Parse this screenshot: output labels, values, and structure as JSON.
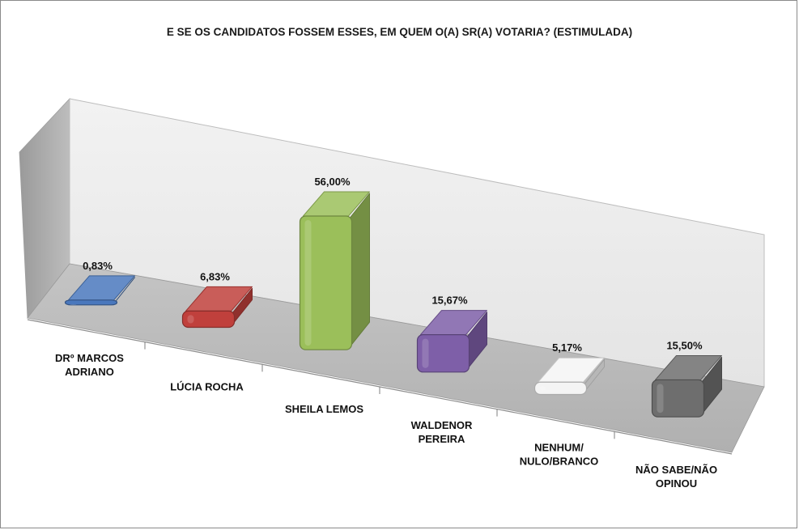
{
  "chart_data": {
    "type": "bar",
    "title": "E SE OS CANDIDATOS FOSSEM ESSES, EM QUEM O(A) SR(A) VOTARIA? (ESTIMULADA)",
    "categories": [
      [
        "DRº MARCOS",
        "ADRIANO"
      ],
      [
        "LÚCIA ROCHA"
      ],
      [
        "SHEILA LEMOS"
      ],
      [
        "WALDENOR",
        "PEREIRA"
      ],
      [
        "NENHUM/",
        "NULO/BRANCO"
      ],
      [
        "NÃO SABE/NÃO",
        "OPINOU"
      ]
    ],
    "values": [
      0.83,
      6.83,
      56.0,
      15.67,
      5.17,
      15.5
    ],
    "value_labels": [
      "0,83%",
      "6,83%",
      "56,00%",
      "15,67%",
      "5,17%",
      "15,50%"
    ],
    "colors": [
      "#4a78bd",
      "#c0403c",
      "#9bbf5a",
      "#7e5fa8",
      "#f4f4f4",
      "#6e6e6e"
    ],
    "ylim": [
      0,
      60
    ],
    "grid": false,
    "legend": "none",
    "style": "3d"
  }
}
